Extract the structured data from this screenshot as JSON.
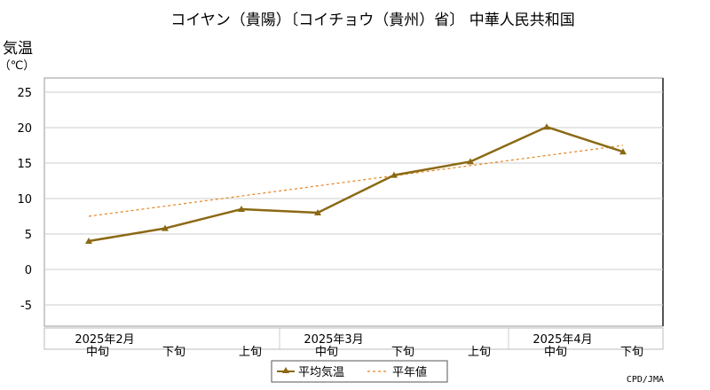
{
  "chart_data": {
    "type": "line",
    "title": "コイヤン（貴陽）〔コイチョウ（貴州）省〕 中華人民共和国",
    "ylabel": "気温",
    "yunit": "（℃）",
    "ylim": [
      -8,
      27
    ],
    "yticks": [
      25,
      20,
      15,
      10,
      5,
      0,
      -5
    ],
    "grid": true,
    "categories": [
      "2月中旬",
      "2月下旬",
      "3月上旬",
      "3月中旬",
      "3月下旬",
      "4月上旬",
      "4月中旬",
      "4月下旬"
    ],
    "xtick_labels": [
      "中旬",
      "下旬",
      "上旬",
      "中旬",
      "下旬",
      "上旬",
      "中旬",
      "下旬"
    ],
    "month_labels": [
      {
        "label": "2025年2月",
        "index": 0
      },
      {
        "label": "2025年3月",
        "index": 3
      },
      {
        "label": "2025年4月",
        "index": 6
      }
    ],
    "series": [
      {
        "name": "平均気温",
        "color": "#8b6914",
        "style": "solid",
        "marker": "triangle",
        "values": [
          4.0,
          5.8,
          8.5,
          8.0,
          13.3,
          15.2,
          20.1,
          16.6
        ]
      },
      {
        "name": "平年値",
        "color": "#e8821e",
        "style": "dashed",
        "values": [
          7.5,
          null,
          null,
          null,
          null,
          null,
          null,
          17.5
        ]
      }
    ],
    "legend_position": "bottom",
    "source": "CPD/JMA"
  }
}
